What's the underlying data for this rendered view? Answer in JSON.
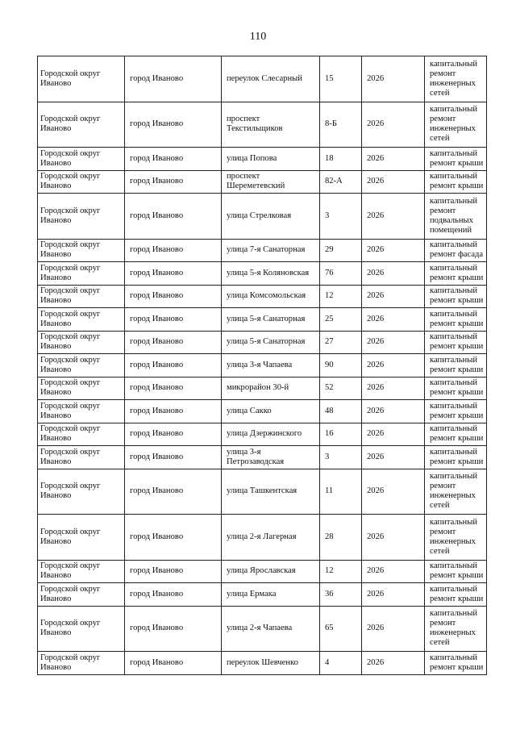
{
  "page_number": "110",
  "rows": [
    {
      "district": "Городской округ Иваново",
      "city": "город Иваново",
      "street": "переулок Слесарный",
      "house": "15",
      "year": "2026",
      "work": "капитальный ремонт инженерных сетей",
      "lines": 4
    },
    {
      "district": "Городской округ Иваново",
      "city": "город Иваново",
      "street": "проспект Текстильщиков",
      "house": "8-Б",
      "year": "2026",
      "work": "капитальный ремонт инженерных сетей",
      "lines": 4
    },
    {
      "district": "Городской округ Иваново",
      "city": "город Иваново",
      "street": "улица Попова",
      "house": "18",
      "year": "2026",
      "work": "капитальный ремонт крыши",
      "lines": 2
    },
    {
      "district": "Городской округ Иваново",
      "city": "город Иваново",
      "street": "проспект Шереметевский",
      "house": "82-А",
      "year": "2026",
      "work": "капитальный ремонт крыши",
      "lines": 2
    },
    {
      "district": "Городской округ Иваново",
      "city": "город Иваново",
      "street": "улица Стрелковая",
      "house": "3",
      "year": "2026",
      "work": "капитальный ремонт подвальных помещений",
      "lines": 4
    },
    {
      "district": "Городской округ Иваново",
      "city": "город Иваново",
      "street": "улица 7-я Санаторная",
      "house": "29",
      "year": "2026",
      "work": "капитальный ремонт фасада",
      "lines": 2
    },
    {
      "district": "Городской округ Иваново",
      "city": "город Иваново",
      "street": "улица 5-я Коляновская",
      "house": "76",
      "year": "2026",
      "work": "капитальный ремонт крыши",
      "lines": 2
    },
    {
      "district": "Городской округ Иваново",
      "city": "город Иваново",
      "street": "улица Комсомольская",
      "house": "12",
      "year": "2026",
      "work": "капитальный ремонт крыши",
      "lines": 2
    },
    {
      "district": "Городской округ Иваново",
      "city": "город Иваново",
      "street": "улица 5-я Санаторная",
      "house": "25",
      "year": "2026",
      "work": "капитальный ремонт крыши",
      "lines": 2
    },
    {
      "district": "Городской округ Иваново",
      "city": "город Иваново",
      "street": "улица 5-я Санаторная",
      "house": "27",
      "year": "2026",
      "work": "капитальный ремонт крыши",
      "lines": 2
    },
    {
      "district": "Городской округ Иваново",
      "city": "город Иваново",
      "street": "улица 3-я Чапаева",
      "house": "90",
      "year": "2026",
      "work": "капитальный ремонт крыши",
      "lines": 2
    },
    {
      "district": "Городской округ Иваново",
      "city": "город Иваново",
      "street": "микрорайон 30-й",
      "house": "52",
      "year": "2026",
      "work": "капитальный ремонт крыши",
      "lines": 2
    },
    {
      "district": "Городской округ Иваново",
      "city": "город Иваново",
      "street": "улица Сакко",
      "house": "48",
      "year": "2026",
      "work": "капитальный ремонт крыши",
      "lines": 2
    },
    {
      "district": "Городской округ Иваново",
      "city": "город Иваново",
      "street": "улица Дзержинского",
      "house": "16",
      "year": "2026",
      "work": "капитальный ремонт крыши",
      "lines": 2
    },
    {
      "district": "Городской округ Иваново",
      "city": "город Иваново",
      "street": "улица 3-я Петрозаводская",
      "house": "3",
      "year": "2026",
      "work": "капитальный ремонт крыши",
      "lines": 2
    },
    {
      "district": "Городской округ Иваново",
      "city": "город Иваново",
      "street": "улица Ташкентская",
      "house": "11",
      "year": "2026",
      "work": "капитальный ремонт инженерных сетей",
      "lines": 4
    },
    {
      "district": "Городской округ Иваново",
      "city": "город Иваново",
      "street": "улица 2-я Лагерная",
      "house": "28",
      "year": "2026",
      "work": "капитальный ремонт инженерных сетей",
      "lines": 4
    },
    {
      "district": "Городской округ Иваново",
      "city": "город Иваново",
      "street": "улица Ярославская",
      "house": "12",
      "year": "2026",
      "work": "капитальный ремонт крыши",
      "lines": 2
    },
    {
      "district": "Городской округ Иваново",
      "city": "город Иваново",
      "street": "улица Ермака",
      "house": "36",
      "year": "2026",
      "work": "капитальный ремонт крыши",
      "lines": 2
    },
    {
      "district": "Городской округ Иваново",
      "city": "город Иваново",
      "street": "улица 2-я Чапаева",
      "house": "65",
      "year": "2026",
      "work": "капитальный ремонт инженерных сетей",
      "lines": 4
    },
    {
      "district": "Городской округ Иваново",
      "city": "город Иваново",
      "street": "переулок Шевченко",
      "house": "4",
      "year": "2026",
      "work": "капитальный ремонт крыши",
      "lines": 2
    }
  ]
}
